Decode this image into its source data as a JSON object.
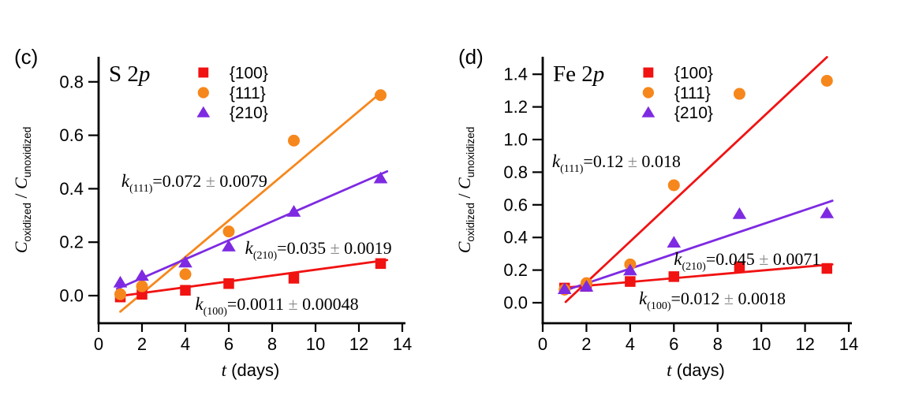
{
  "figure": {
    "background": "#ffffff",
    "text_color": "#000000",
    "plusminus_color": "#8a8a8a"
  },
  "chart_data": [
    {
      "type": "scatter",
      "panel_label": "(c)",
      "title": "S 2p",
      "title_prefix": "S 2",
      "title_italic": "p",
      "xlabel": "t (days)",
      "xlabel_symbol": "t",
      "xlabel_rest": " (days)",
      "ylabel": "C_oxidized / C_unoxidized",
      "ylabel_parts": {
        "c1": "C",
        "sub1": "oxidized",
        "mid": " / ",
        "c2": "C",
        "sub2": "unoxidized"
      },
      "xlim": [
        0,
        14
      ],
      "xticks": [
        0,
        2,
        4,
        6,
        8,
        10,
        12,
        14
      ],
      "ylim": [
        -0.1,
        0.89
      ],
      "yticks": [
        {
          "v": 0.0,
          "label": "0.0"
        },
        {
          "v": 0.2,
          "label": "0.2"
        },
        {
          "v": 0.4,
          "label": "0.4"
        },
        {
          "v": 0.6,
          "label": "0.6"
        },
        {
          "v": 0.8,
          "label": "0.8"
        }
      ],
      "grid": false,
      "legend_position": "top-inside",
      "x_days": [
        1,
        2,
        4,
        6,
        9,
        13
      ],
      "series": [
        {
          "name": "{100}",
          "marker": "square",
          "color": "#f11212",
          "line_color": "#f11212",
          "y": [
            -0.005,
            0.005,
            0.02,
            0.045,
            0.065,
            0.12
          ],
          "fit_line": {
            "k": "0.0011 ± 0.00048",
            "x": [
              0.85,
              13.3
            ],
            "y": [
              -0.003,
              0.133
            ]
          }
        },
        {
          "name": "{111}",
          "marker": "circle",
          "color": "#f6871c",
          "line_color": "#f6871c",
          "y": [
            0.005,
            0.035,
            0.08,
            0.24,
            0.58,
            0.75
          ],
          "fit_line": {
            "k": "0.072 ± 0.0079",
            "x": [
              1.0,
              12.95
            ],
            "y": [
              -0.06,
              0.755
            ]
          }
        },
        {
          "name": "{210}",
          "marker": "triangle",
          "color": "#7e2ae2",
          "line_color": "#7e2ae2",
          "y": [
            0.05,
            0.075,
            0.125,
            0.185,
            0.315,
            0.44
          ],
          "fit_line": {
            "k": "0.035 ± 0.0019",
            "x": [
              0.85,
              13.3
            ],
            "y": [
              0.025,
              0.465
            ]
          }
        }
      ],
      "annotations": [
        {
          "k_sub": "(111)",
          "text": "=0.072 ± 0.0079",
          "x": 1.05,
          "y": 0.43
        },
        {
          "k_sub": "(210)",
          "text": "=0.035 ± 0.0019",
          "x": 6.75,
          "y": 0.18
        },
        {
          "k_sub": "(100)",
          "text": "=0.0011 ± 0.00048",
          "x": 4.45,
          "y": -0.03
        }
      ]
    },
    {
      "type": "scatter",
      "panel_label": "(d)",
      "title": "Fe 2p",
      "title_prefix": "Fe 2",
      "title_italic": "p",
      "xlabel": "t (days)",
      "xlabel_symbol": "t",
      "xlabel_rest": " (days)",
      "ylabel": "C_oxidized / C_unoxidized",
      "ylabel_parts": {
        "c1": "C",
        "sub1": "oxidized",
        "mid": " / ",
        "c2": "C",
        "sub2": "unoxidized"
      },
      "xlim": [
        0,
        14
      ],
      "xticks": [
        0,
        2,
        4,
        6,
        8,
        10,
        12,
        14
      ],
      "ylim": [
        -0.12,
        1.51
      ],
      "yticks": [
        {
          "v": 0.0,
          "label": "0.0"
        },
        {
          "v": 0.2,
          "label": "0.2"
        },
        {
          "v": 0.4,
          "label": "0.4"
        },
        {
          "v": 0.6,
          "label": "0.6"
        },
        {
          "v": 0.8,
          "label": "0.8"
        },
        {
          "v": 1.0,
          "label": "1.0"
        },
        {
          "v": 1.2,
          "label": "1.2"
        },
        {
          "v": 1.4,
          "label": "1.4"
        }
      ],
      "grid": false,
      "legend_position": "top-inside",
      "x_days": [
        1,
        2,
        4,
        6,
        9,
        13
      ],
      "series": [
        {
          "name": "{100}",
          "marker": "square",
          "color": "#f11212",
          "line_color": "#f11212",
          "y": [
            0.09,
            0.1,
            0.13,
            0.16,
            0.22,
            0.21
          ],
          "fit_line": {
            "k": "0.012 ± 0.0018",
            "x": [
              0.8,
              13.25
            ],
            "y": [
              0.09,
              0.235
            ]
          }
        },
        {
          "name": "{111}",
          "marker": "circle",
          "color": "#f6871c",
          "line_color": "#f11212",
          "y": [
            0.08,
            0.12,
            0.235,
            0.72,
            1.28,
            1.36
          ],
          "fit_line": {
            "k": "0.12 ± 0.018",
            "x": [
              1.05,
              13.0
            ],
            "y": [
              0.005,
              1.505
            ]
          }
        },
        {
          "name": "{210}",
          "marker": "triangle",
          "color": "#7e2ae2",
          "line_color": "#7e2ae2",
          "y": [
            0.085,
            0.1,
            0.2,
            0.37,
            0.545,
            0.55
          ],
          "fit_line": {
            "k": "0.045 ± 0.0071",
            "x": [
              0.8,
              13.25
            ],
            "y": [
              0.065,
              0.625
            ]
          }
        }
      ],
      "annotations": [
        {
          "k_sub": "(111)",
          "text": "=0.12 ± 0.018",
          "x": 0.43,
          "y": 0.87
        },
        {
          "k_sub": "(210)",
          "text": "=0.045 ± 0.0071",
          "x": 6.0,
          "y": 0.27
        },
        {
          "k_sub": "(100)",
          "text": "=0.012 ± 0.0018",
          "x": 4.4,
          "y": 0.03
        }
      ]
    }
  ]
}
